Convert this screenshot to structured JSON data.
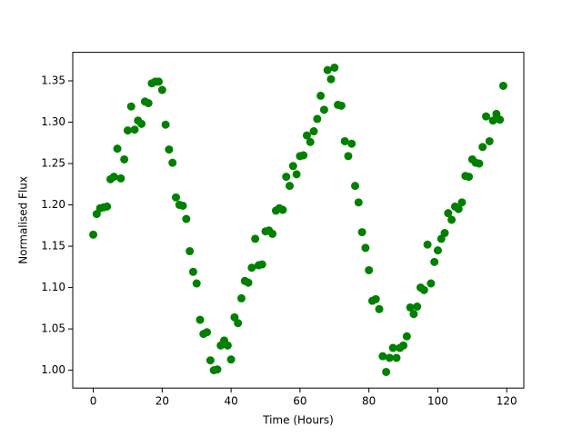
{
  "chart_data": {
    "type": "scatter",
    "x_label": "Time (Hours)",
    "y_label": "Normalised Flux",
    "color": "#008000",
    "x": [
      0,
      1,
      2,
      3,
      4,
      5,
      6,
      7,
      8,
      9,
      10,
      11,
      12,
      13,
      14,
      15,
      16,
      17,
      18,
      19,
      20,
      21,
      22,
      23,
      24,
      25,
      26,
      27,
      28,
      29,
      30,
      31,
      32,
      33,
      34,
      35,
      36,
      37,
      38,
      39,
      40,
      41,
      42,
      43,
      44,
      45,
      46,
      47,
      48,
      49,
      50,
      51,
      52,
      53,
      54,
      55,
      56,
      57,
      58,
      59,
      60,
      61,
      62,
      63,
      64,
      65,
      66,
      67,
      68,
      69,
      70,
      71,
      72,
      73,
      74,
      75,
      76,
      77,
      78,
      79,
      80,
      81,
      82,
      83,
      84,
      85,
      86,
      87,
      88,
      89,
      90,
      91,
      92,
      93,
      94,
      95,
      96,
      97,
      98,
      99,
      100,
      101,
      102,
      103,
      104,
      105,
      106,
      107,
      108,
      109,
      110,
      111,
      112,
      113,
      114,
      115,
      116,
      117,
      118,
      119
    ],
    "values": [
      1.164,
      1.189,
      1.196,
      1.197,
      1.198,
      1.231,
      1.234,
      1.268,
      1.232,
      1.255,
      1.29,
      1.319,
      1.291,
      1.302,
      1.298,
      1.325,
      1.323,
      1.347,
      1.349,
      1.349,
      1.339,
      1.297,
      1.267,
      1.251,
      1.209,
      1.2,
      1.199,
      1.183,
      1.144,
      1.119,
      1.105,
      1.061,
      1.044,
      1.046,
      1.012,
      1.0,
      1.001,
      1.03,
      1.036,
      1.03,
      1.013,
      1.064,
      1.057,
      1.087,
      1.108,
      1.106,
      1.124,
      1.159,
      1.127,
      1.128,
      1.168,
      1.169,
      1.165,
      1.193,
      1.196,
      1.194,
      1.234,
      1.223,
      1.247,
      1.237,
      1.259,
      1.26,
      1.284,
      1.276,
      1.289,
      1.304,
      1.332,
      1.315,
      1.363,
      1.352,
      1.366,
      1.321,
      1.32,
      1.277,
      1.259,
      1.274,
      1.223,
      1.203,
      1.167,
      1.148,
      1.121,
      1.084,
      1.086,
      1.074,
      1.017,
      0.998,
      1.015,
      1.027,
      1.015,
      1.027,
      1.03,
      1.041,
      1.076,
      1.068,
      1.077,
      1.1,
      1.097,
      1.152,
      1.105,
      1.131,
      1.145,
      1.159,
      1.166,
      1.19,
      1.182,
      1.198,
      1.195,
      1.203,
      1.235,
      1.234,
      1.255,
      1.251,
      1.25,
      1.27,
      1.307,
      1.277,
      1.302,
      1.31,
      1.303,
      1.344
    ],
    "xlim": [
      -5.95,
      124.95
    ],
    "ylim": [
      0.9785,
      1.3845
    ],
    "xticks": [
      0,
      20,
      40,
      60,
      80,
      100,
      120
    ],
    "yticks": [
      {
        "value": 1.0,
        "label": "1.00"
      },
      {
        "value": 1.05,
        "label": "1.05"
      },
      {
        "value": 1.1,
        "label": "1.10"
      },
      {
        "value": 1.15,
        "label": "1.15"
      },
      {
        "value": 1.2,
        "label": "1.20"
      },
      {
        "value": 1.25,
        "label": "1.25"
      },
      {
        "value": 1.3,
        "label": "1.30"
      },
      {
        "value": 1.35,
        "label": "1.35"
      }
    ],
    "grid": false
  }
}
